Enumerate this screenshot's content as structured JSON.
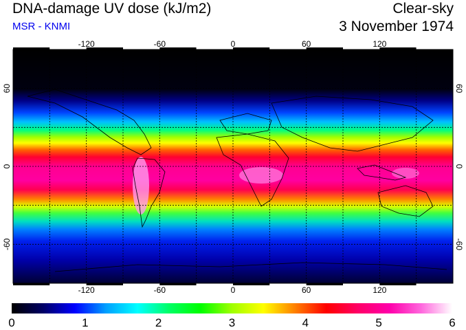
{
  "header": {
    "title": "DNA-damage UV dose (kJ/m2)",
    "source": "MSR - KNMI",
    "condition": "Clear-sky",
    "date": "3 November 1974"
  },
  "map": {
    "lon_ticks": [
      -120,
      -60,
      0,
      60,
      120
    ],
    "lat_ticks": [
      60,
      0,
      -60
    ],
    "lon_range": [
      -180,
      180
    ],
    "lat_range": [
      -90,
      90
    ],
    "grid_lon": [
      -150,
      -120,
      -90,
      -60,
      -30,
      0,
      30,
      60,
      90,
      120,
      150
    ],
    "grid_lat": [
      60,
      30,
      0,
      -30,
      -60
    ],
    "grid": true
  },
  "colorbar": {
    "ticks": [
      0,
      1,
      2,
      3,
      4,
      5,
      6
    ],
    "range": [
      0,
      6
    ],
    "colors": [
      "#000000",
      "#000066",
      "#0000ff",
      "#00a0ff",
      "#00ffff",
      "#00ff66",
      "#00ff00",
      "#a0ff00",
      "#ffff00",
      "#ff8000",
      "#ff0000",
      "#ff0066",
      "#ff00aa",
      "#ff66dd",
      "#ffffff"
    ]
  }
}
